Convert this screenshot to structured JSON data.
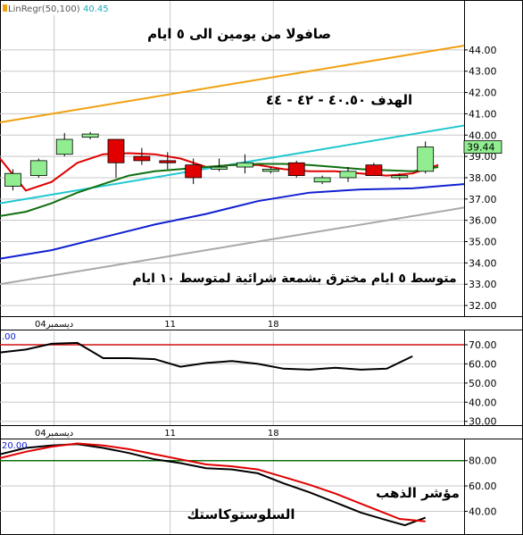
{
  "legend": {
    "indicator": "LinRegr(50,100)",
    "value": "40.45"
  },
  "annotations": {
    "title_top": "صافولا من يومين الى ٥ ايام",
    "target": "الهدف ٤٠.٥٠ - ٤٢ - ٤٤",
    "bottom_note": "متوسط ٥ ايام مخترق بشمعة شرائية لمتوسط ١٠ ايام",
    "gold_label": "مؤشر الذهب",
    "stoch_label": "السلوستوكاستك"
  },
  "last_price_label": "39.44",
  "x_ticks": [
    {
      "label": "04ديسمبر",
      "x_index": 1.1
    },
    {
      "label": "11",
      "x_index": 5.6
    },
    {
      "label": "18",
      "x_index": 9.6
    }
  ],
  "colors": {
    "up_candle": "#90ee90",
    "down_candle": "#e00000",
    "ma5": "#e00000",
    "ma10": "#107010",
    "ma20": "#1020d0",
    "channel_upper": "#f0a010",
    "channel_mid": "#20c8d0",
    "channel_lower": "#a8a8a8",
    "grid": "#c8c8c8",
    "level_line_red": "#d01010",
    "level_line_green": "#107010"
  },
  "chart_data": [
    {
      "type": "candlestick",
      "title": "",
      "ylim": [
        31.5,
        46.3
      ],
      "yticks": [
        32.0,
        33.0,
        34.0,
        35.0,
        36.0,
        37.0,
        38.0,
        39.0,
        40.0,
        41.0,
        42.0,
        43.0,
        44.0
      ],
      "candles": [
        {
          "x": -0.5,
          "o": 37.6,
          "h": 38.4,
          "l": 37.4,
          "c": 38.2
        },
        {
          "x": 0.5,
          "o": 38.1,
          "h": 38.9,
          "l": 38.0,
          "c": 38.8
        },
        {
          "x": 1.5,
          "o": 39.1,
          "h": 40.1,
          "l": 39.0,
          "c": 39.8
        },
        {
          "x": 2.5,
          "o": 39.9,
          "h": 40.15,
          "l": 39.8,
          "c": 40.05
        },
        {
          "x": 3.5,
          "o": 39.8,
          "h": 39.8,
          "l": 38.0,
          "c": 38.7
        },
        {
          "x": 4.5,
          "o": 39.0,
          "h": 39.4,
          "l": 38.6,
          "c": 38.8
        },
        {
          "x": 5.5,
          "o": 38.8,
          "h": 39.2,
          "l": 38.4,
          "c": 38.7
        },
        {
          "x": 6.5,
          "o": 38.6,
          "h": 38.9,
          "l": 37.7,
          "c": 38.0
        },
        {
          "x": 7.5,
          "o": 38.4,
          "h": 38.9,
          "l": 38.3,
          "c": 38.5
        },
        {
          "x": 8.5,
          "o": 38.5,
          "h": 39.1,
          "l": 38.2,
          "c": 38.7
        },
        {
          "x": 9.5,
          "o": 38.3,
          "h": 38.5,
          "l": 38.2,
          "c": 38.4
        },
        {
          "x": 10.5,
          "o": 38.7,
          "h": 38.8,
          "l": 38.0,
          "c": 38.1
        },
        {
          "x": 11.5,
          "o": 37.8,
          "h": 38.1,
          "l": 37.7,
          "c": 38.0
        },
        {
          "x": 12.5,
          "o": 38.0,
          "h": 38.5,
          "l": 37.8,
          "c": 38.3
        },
        {
          "x": 13.5,
          "o": 38.6,
          "h": 38.7,
          "l": 38.1,
          "c": 38.1
        },
        {
          "x": 14.5,
          "o": 38.0,
          "h": 38.2,
          "l": 37.9,
          "c": 38.1
        },
        {
          "x": 15.5,
          "o": 38.3,
          "h": 39.7,
          "l": 38.2,
          "c": 39.44
        }
      ],
      "lines": [
        {
          "name": "ma5",
          "color": "ma5",
          "points": [
            [
              -1,
              38.9
            ],
            [
              0,
              37.4
            ],
            [
              1,
              37.8
            ],
            [
              2,
              38.7
            ],
            [
              3,
              39.1
            ],
            [
              4,
              39.15
            ],
            [
              5,
              39.1
            ],
            [
              6,
              38.9
            ],
            [
              7,
              38.5
            ],
            [
              8,
              38.6
            ],
            [
              9,
              38.6
            ],
            [
              10,
              38.4
            ],
            [
              11,
              38.3
            ],
            [
              12,
              38.3
            ],
            [
              13,
              38.2
            ],
            [
              14,
              38.1
            ],
            [
              15,
              38.2
            ],
            [
              16,
              38.6
            ]
          ]
        },
        {
          "name": "ma10",
          "color": "ma10",
          "points": [
            [
              -1,
              36.2
            ],
            [
              0,
              36.4
            ],
            [
              1,
              36.8
            ],
            [
              2,
              37.3
            ],
            [
              3,
              37.7
            ],
            [
              4,
              38.1
            ],
            [
              5,
              38.3
            ],
            [
              6,
              38.4
            ],
            [
              7,
              38.5
            ],
            [
              8,
              38.6
            ],
            [
              9,
              38.65
            ],
            [
              10,
              38.65
            ],
            [
              11,
              38.6
            ],
            [
              12,
              38.5
            ],
            [
              13,
              38.4
            ],
            [
              14,
              38.35
            ],
            [
              15,
              38.3
            ],
            [
              16,
              38.5
            ]
          ]
        },
        {
          "name": "ma20",
          "color": "ma20",
          "points": [
            [
              -1,
              34.2
            ],
            [
              1,
              34.6
            ],
            [
              3,
              35.2
            ],
            [
              5,
              35.8
            ],
            [
              7,
              36.3
            ],
            [
              9,
              36.9
            ],
            [
              11,
              37.3
            ],
            [
              13,
              37.45
            ],
            [
              15,
              37.5
            ],
            [
              17,
              37.7
            ]
          ]
        },
        {
          "name": "channel_upper",
          "color": "channel_upper",
          "points": [
            [
              -1,
              40.6
            ],
            [
              17,
              44.2
            ]
          ]
        },
        {
          "name": "channel_mid",
          "color": "channel_mid",
          "points": [
            [
              -1,
              36.8
            ],
            [
              17,
              40.45
            ]
          ]
        },
        {
          "name": "channel_lower",
          "color": "channel_lower",
          "points": [
            [
              -1,
              33.0
            ],
            [
              17,
              36.6
            ]
          ]
        }
      ]
    },
    {
      "type": "line",
      "title": "",
      "corner_label": ".00",
      "ylim": [
        28,
        77
      ],
      "yticks": [
        30.0,
        40.0,
        50.0,
        60.0,
        70.0
      ],
      "hlines": [
        {
          "y": 70,
          "color": "level_line_red"
        }
      ],
      "lines": [
        {
          "name": "",
          "color": "#000000",
          "points": [
            [
              -1,
              66
            ],
            [
              0,
              67.5
            ],
            [
              1,
              70.5
            ],
            [
              2,
              71
            ],
            [
              3,
              63
            ],
            [
              4,
              63
            ],
            [
              5,
              62.5
            ],
            [
              6,
              58.5
            ],
            [
              7,
              60.5
            ],
            [
              8,
              61.5
            ],
            [
              9,
              60
            ],
            [
              10,
              57.5
            ],
            [
              11,
              57
            ],
            [
              12,
              58
            ],
            [
              13,
              57
            ],
            [
              14,
              57.5
            ],
            [
              15,
              64
            ]
          ]
        }
      ]
    },
    {
      "type": "line",
      "title": "",
      "corner_label": "20.00",
      "ylim": [
        22,
        96
      ],
      "yticks": [
        40.0,
        60.0,
        80.0
      ],
      "hlines": [
        {
          "y": 80,
          "color": "level_line_green"
        }
      ],
      "lines": [
        {
          "name": "",
          "color": "#000000",
          "points": [
            [
              -1,
              85
            ],
            [
              0,
              90
            ],
            [
              1,
              92
            ],
            [
              2,
              93
            ],
            [
              3,
              90
            ],
            [
              4,
              86
            ],
            [
              5,
              81
            ],
            [
              6,
              78
            ],
            [
              7,
              74
            ],
            [
              8,
              73
            ],
            [
              9,
              70
            ],
            [
              10,
              62
            ],
            [
              11,
              55
            ],
            [
              12,
              47
            ],
            [
              13,
              39
            ],
            [
              14,
              33
            ],
            [
              14.7,
              29
            ],
            [
              15.5,
              35
            ]
          ]
        },
        {
          "name": "",
          "color": "#e00000",
          "points": [
            [
              -1,
              82
            ],
            [
              0,
              87
            ],
            [
              1,
              91
            ],
            [
              2,
              93.5
            ],
            [
              3,
              92
            ],
            [
              4,
              89
            ],
            [
              5,
              85
            ],
            [
              6,
              81
            ],
            [
              7,
              77
            ],
            [
              8,
              75.5
            ],
            [
              9,
              73
            ],
            [
              10,
              67
            ],
            [
              11,
              61
            ],
            [
              12,
              54
            ],
            [
              13,
              46
            ],
            [
              14,
              38
            ],
            [
              14.5,
              34
            ],
            [
              15.5,
              32
            ]
          ]
        }
      ]
    }
  ]
}
